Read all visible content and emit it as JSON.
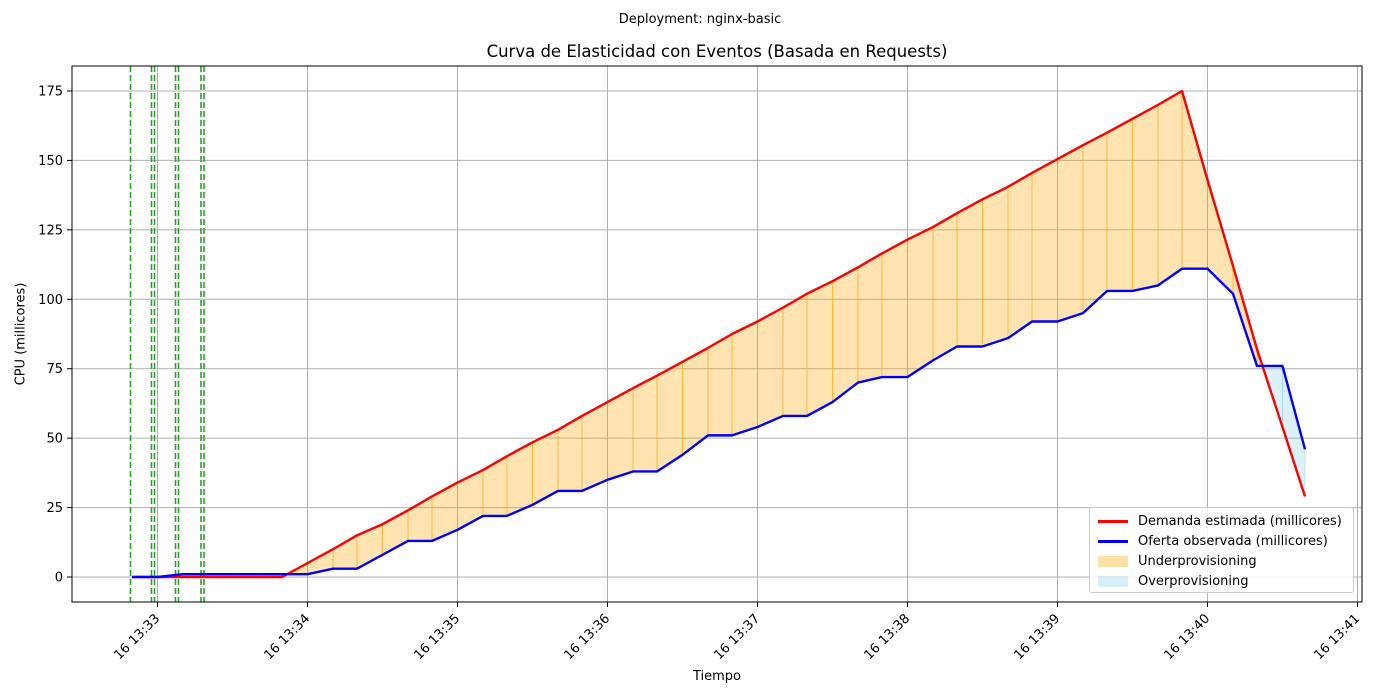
{
  "figure": {
    "suptitle": "Deployment: nginx-basic"
  },
  "chart_data": {
    "type": "line",
    "title": "Curva de Elasticidad con Eventos (Basada en Requests)",
    "xlabel": "Tiempo",
    "ylabel": "CPU (millicores)",
    "x_unit": "minute_of_hour",
    "x_range": [
      32.43,
      41.03
    ],
    "ylim": [
      -9,
      184
    ],
    "grid": true,
    "legend_position": "lower-right",
    "x_ticks": [
      {
        "value": 33,
        "label": "16 13:33"
      },
      {
        "value": 34,
        "label": "16 13:34"
      },
      {
        "value": 35,
        "label": "16 13:35"
      },
      {
        "value": 36,
        "label": "16 13:36"
      },
      {
        "value": 37,
        "label": "16 13:37"
      },
      {
        "value": 38,
        "label": "16 13:38"
      },
      {
        "value": 39,
        "label": "16 13:39"
      },
      {
        "value": 40,
        "label": "16 13:40"
      },
      {
        "value": 41,
        "label": "16 13:41"
      }
    ],
    "y_ticks": [
      0,
      25,
      50,
      75,
      100,
      125,
      150,
      175
    ],
    "x": [
      32.83,
      33.0,
      33.17,
      33.33,
      33.5,
      33.67,
      33.83,
      34.0,
      34.17,
      34.33,
      34.5,
      34.67,
      34.83,
      35.0,
      35.17,
      35.33,
      35.5,
      35.67,
      35.83,
      36.0,
      36.17,
      36.33,
      36.5,
      36.67,
      36.83,
      37.0,
      37.17,
      37.33,
      37.5,
      37.67,
      37.83,
      38.0,
      38.17,
      38.33,
      38.5,
      38.67,
      38.83,
      39.0,
      39.17,
      39.33,
      39.5,
      39.67,
      39.83,
      40.0,
      40.17,
      40.33,
      40.5,
      40.65
    ],
    "series": [
      {
        "name": "Demanda estimada (millicores)",
        "color": "#ff0000",
        "values": [
          0,
          0,
          0,
          0,
          0,
          0,
          0,
          5,
          10,
          15,
          19,
          24,
          29,
          34,
          38.5,
          43.5,
          48.5,
          53,
          58,
          63,
          68,
          72.5,
          77.5,
          82.5,
          87.5,
          92,
          97,
          102,
          106.5,
          111.5,
          116.5,
          121.5,
          126,
          131,
          136,
          140.5,
          145.5,
          150.5,
          155.5,
          160,
          165,
          170,
          175,
          143,
          112,
          82,
          54,
          29
        ]
      },
      {
        "name": "Oferta observada (millicores)",
        "color": "#0000ff",
        "values": [
          0,
          0,
          1,
          1,
          1,
          1,
          1,
          1,
          3,
          3,
          8,
          13,
          13,
          17,
          22,
          22,
          26,
          31,
          31,
          35,
          38,
          38,
          44,
          51,
          51,
          54,
          58,
          58,
          63,
          70,
          72,
          72,
          78,
          83,
          83,
          86,
          92,
          92,
          95,
          103,
          103,
          105,
          111,
          111,
          102,
          76,
          76,
          46
        ]
      }
    ],
    "fills": [
      {
        "name": "Underprovisioning",
        "color": "#ffa500",
        "opacity": 0.3,
        "condition": "demand > supply"
      },
      {
        "name": "Overprovisioning",
        "color": "#87ceeb",
        "opacity": 0.3,
        "condition": "supply > demand"
      }
    ],
    "event_lines": {
      "color": "#2ca02c",
      "style": "dashed",
      "x": [
        32.82,
        32.96,
        32.98,
        33.12,
        33.14,
        33.29,
        33.31
      ]
    }
  }
}
